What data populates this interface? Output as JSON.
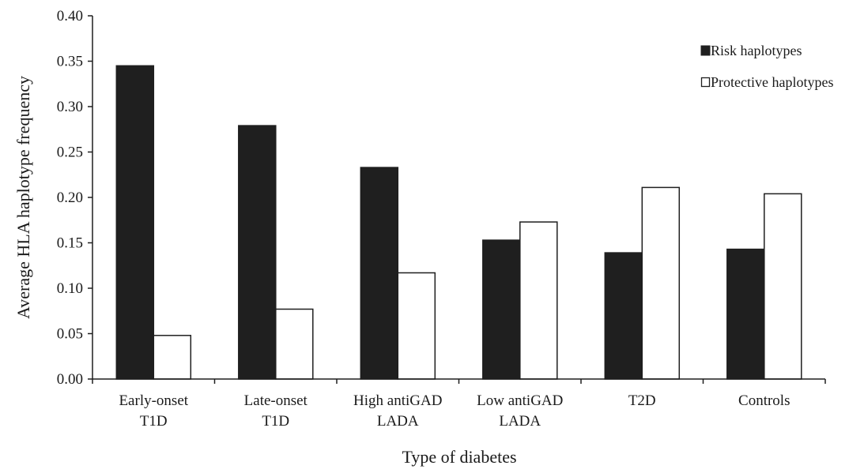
{
  "chart_data": {
    "type": "bar",
    "title": "",
    "xlabel": "Type of diabetes",
    "ylabel": "Average HLA haplotype frequency",
    "ylim": [
      0,
      0.4
    ],
    "yticks": [
      "0.00",
      "0.05",
      "0.10",
      "0.15",
      "0.20",
      "0.25",
      "0.30",
      "0.35",
      "0.40"
    ],
    "categories": [
      [
        "Early-onset",
        "T1D"
      ],
      [
        "Late-onset",
        "T1D"
      ],
      [
        "High antiGAD",
        "LADA"
      ],
      [
        "Low antiGAD",
        "LADA"
      ],
      [
        "T2D"
      ],
      [
        "Controls"
      ]
    ],
    "series": [
      {
        "name": "Risk haplotypes",
        "color": "#1f1f1f",
        "values": [
          0.345,
          0.279,
          0.233,
          0.153,
          0.139,
          0.143
        ]
      },
      {
        "name": "Protective haplotypes",
        "color": "#ffffff",
        "values": [
          0.048,
          0.077,
          0.117,
          0.173,
          0.211,
          0.204
        ]
      }
    ],
    "legend_position": "top-right",
    "grid": false
  }
}
